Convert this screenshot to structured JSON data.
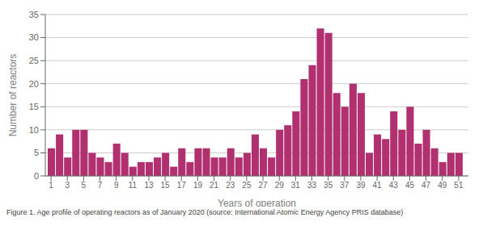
{
  "chart_data": {
    "type": "bar",
    "x": [
      1,
      2,
      3,
      4,
      5,
      6,
      7,
      8,
      9,
      10,
      11,
      12,
      13,
      14,
      15,
      16,
      17,
      18,
      19,
      20,
      21,
      22,
      23,
      24,
      25,
      26,
      27,
      28,
      29,
      30,
      31,
      32,
      33,
      34,
      35,
      36,
      37,
      38,
      39,
      40,
      41,
      42,
      43,
      44,
      45,
      46,
      47,
      48,
      49,
      50,
      51
    ],
    "values": [
      6,
      9,
      4,
      10,
      10,
      5,
      4,
      3,
      7,
      5,
      2,
      3,
      3,
      4,
      5,
      2,
      6,
      3,
      6,
      6,
      4,
      4,
      6,
      4,
      5,
      9,
      6,
      4,
      10,
      11,
      14,
      21,
      24,
      32,
      31,
      18,
      15,
      20,
      18,
      5,
      9,
      8,
      14,
      10,
      15,
      7,
      10,
      6,
      3,
      5,
      5
    ],
    "color": "#b03070",
    "xlabel": "Years of operation",
    "ylabel": "Number of reactors",
    "xlim": [
      0.3,
      52.2
    ],
    "xticks": [
      1,
      3,
      5,
      7,
      9,
      11,
      13,
      15,
      17,
      19,
      21,
      23,
      25,
      27,
      29,
      31,
      33,
      35,
      37,
      39,
      41,
      43,
      45,
      47,
      49,
      51
    ],
    "ylim": [
      0,
      35
    ],
    "yticks": [
      0,
      5,
      10,
      15,
      20,
      25,
      30,
      35
    ],
    "grid": "y",
    "annotations": [
      "Figure 1. Age profile of operating reactors as of January 2020 (source: International Atomic Energy Agency PRIS database)"
    ]
  }
}
